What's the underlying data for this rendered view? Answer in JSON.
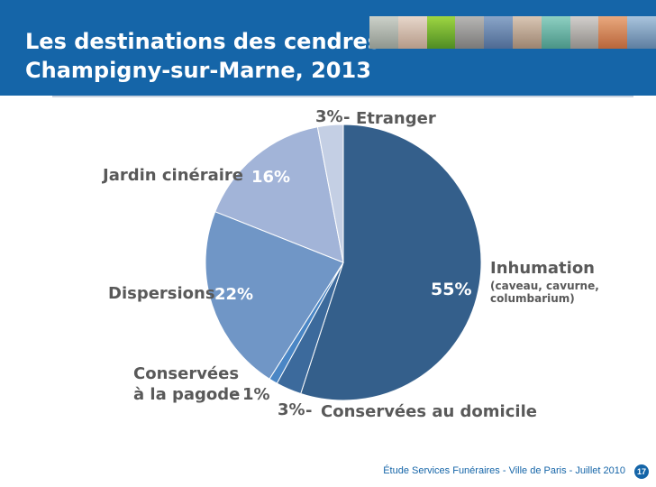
{
  "header": {
    "title_line1": "Les destinations des cendres",
    "title_line2": "Champigny-sur-Marne, 2013"
  },
  "footer": {
    "text": "Étude Services Funéraires - Ville de Paris - Juillet 2010",
    "page_number": "17"
  },
  "colors": {
    "header_bg": "#1565a8",
    "label_text": "#595959"
  },
  "chart_data": {
    "type": "pie",
    "title": "Les destinations des cendres Champigny-sur-Marne, 2013",
    "slices": [
      {
        "label": "Inhumation",
        "sublabel_1": "(caveau, cavurne,",
        "sublabel_2": "columbarium)",
        "value": 55,
        "pct": "55%",
        "color": "#345f8b"
      },
      {
        "label": "Conservées au domicile",
        "value": 3,
        "pct": "3%",
        "color": "#3c6a9c"
      },
      {
        "label": "Conservées",
        "label_line2": "à la pagode",
        "value": 1,
        "pct": "1%",
        "color": "#4a86c5"
      },
      {
        "label": "Dispersions",
        "value": 22,
        "pct": "22%",
        "color": "#7096c6"
      },
      {
        "label": "Jardin cinéraire",
        "value": 16,
        "pct": "16%",
        "color": "#a2b4d8"
      },
      {
        "label": "Etranger",
        "value": 3,
        "pct": "3%",
        "color": "#c4cfe4"
      }
    ],
    "start_angle": "12 o'clock",
    "direction": "clockwise"
  }
}
